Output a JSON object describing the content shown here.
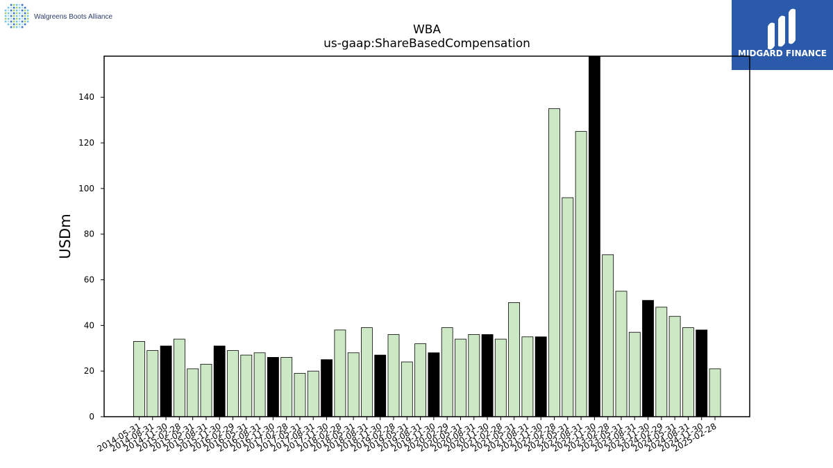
{
  "branding": {
    "left_logo_text": "Walgreens Boots Alliance",
    "right_logo_text": "MIDGARD FINANCE",
    "right_logo_bg": "#2b5aab"
  },
  "chart_data": {
    "type": "bar",
    "title": "WBA",
    "subtitle": "us-gaap:ShareBasedCompensation",
    "xlabel": "",
    "ylabel": "USDm",
    "ylim": [
      0,
      158
    ],
    "yticks": [
      0,
      20,
      40,
      60,
      80,
      100,
      120,
      140
    ],
    "grid": false,
    "colors": {
      "quarterly": "#cce8c4",
      "annual": "#000000",
      "edge": "#000000"
    },
    "categories": [
      "2014-05-31",
      "2014-08-31",
      "2014-11-30",
      "2015-02-28",
      "2015-05-31",
      "2015-08-31",
      "2015-11-30",
      "2016-02-29",
      "2016-05-31",
      "2016-08-31",
      "2016-11-30",
      "2017-02-28",
      "2017-05-31",
      "2017-08-31",
      "2017-11-30",
      "2018-02-28",
      "2018-05-31",
      "2018-08-31",
      "2018-11-30",
      "2019-02-28",
      "2019-05-31",
      "2019-08-31",
      "2019-11-30",
      "2020-02-29",
      "2020-05-31",
      "2020-08-31",
      "2020-11-30",
      "2021-02-28",
      "2021-05-31",
      "2021-08-31",
      "2021-11-30",
      "2022-02-28",
      "2022-05-31",
      "2022-08-31",
      "2022-11-30",
      "2023-02-28",
      "2023-05-31",
      "2023-08-31",
      "2023-11-30",
      "2024-02-29",
      "2024-05-31",
      "2024-08-31",
      "2024-11-30",
      "2025-02-28"
    ],
    "values": [
      33,
      29,
      31,
      34,
      21,
      23,
      31,
      29,
      27,
      28,
      26,
      26,
      19,
      20,
      25,
      38,
      28,
      39,
      27,
      36,
      24,
      32,
      28,
      39,
      34,
      36,
      36,
      34,
      50,
      35,
      35,
      135,
      96,
      125,
      158,
      71,
      55,
      37,
      51,
      48,
      44,
      39,
      38,
      21
    ],
    "annual_flags": [
      false,
      false,
      true,
      false,
      false,
      false,
      true,
      false,
      false,
      false,
      true,
      false,
      false,
      false,
      true,
      false,
      false,
      false,
      true,
      false,
      false,
      false,
      true,
      false,
      false,
      false,
      true,
      false,
      false,
      false,
      true,
      false,
      false,
      false,
      true,
      false,
      false,
      false,
      true,
      false,
      false,
      false,
      true,
      false
    ]
  }
}
